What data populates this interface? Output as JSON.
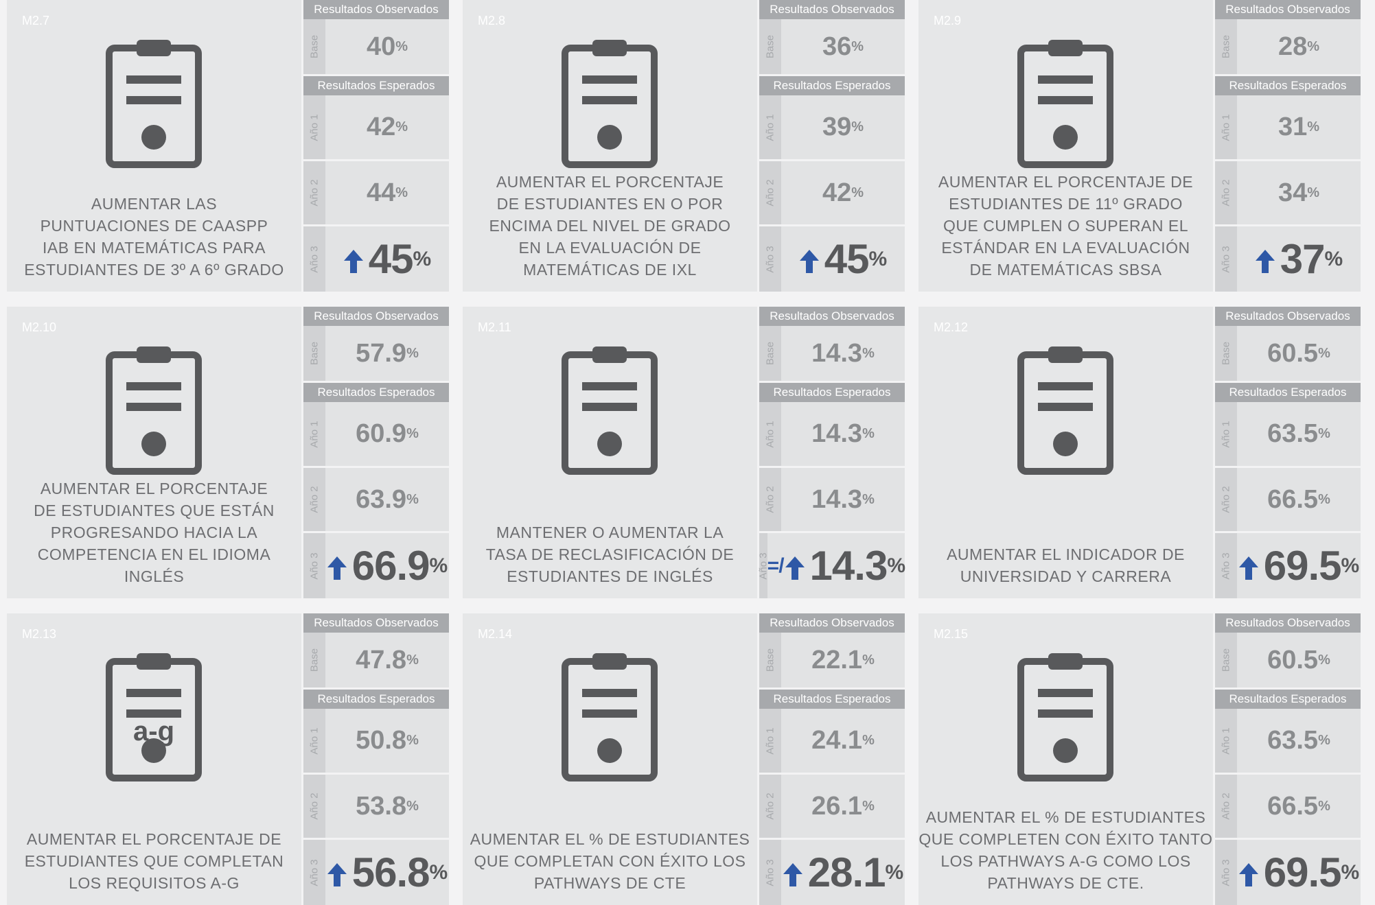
{
  "labels": {
    "observed": "Resultados Observados",
    "expected": "Resultados Esperados",
    "base": "Base",
    "year1": "Año 1",
    "year2": "Año 2",
    "year3": "Año 3",
    "unit": "%"
  },
  "cards": [
    {
      "id": "M2.7",
      "lines": [
        "AUMENTAR LAS",
        "PUNTUACIONES DE CAASPP",
        "IAB EN MATEMÁTICAS PARA",
        "ESTUDIANTES DE 3º A 6º GRADO"
      ],
      "base": "40",
      "year1": "42",
      "year2": "44",
      "year3": "45"
    },
    {
      "id": "M2.8",
      "lines": [
        "AUMENTAR EL PORCENTAJE",
        "DE ESTUDIANTES EN O POR",
        "ENCIMA DEL NIVEL DE GRADO",
        "EN LA EVALUACIÓN DE",
        "MATEMÁTICAS DE IXL"
      ],
      "base": "36",
      "year1": "39",
      "year2": "42",
      "year3": "45"
    },
    {
      "id": "M2.9",
      "lines": [
        "AUMENTAR EL PORCENTAJE DE",
        "ESTUDIANTES DE 11º GRADO",
        "QUE CUMPLEN O SUPERAN EL",
        "ESTÁNDAR EN LA EVALUACIÓN",
        "DE MATEMÁTICAS SBSA"
      ],
      "base": "28",
      "year1": "31",
      "year2": "34",
      "year3": "37"
    },
    {
      "id": "M2.10",
      "lines": [
        "AUMENTAR EL PORCENTAJE",
        "DE ESTUDIANTES QUE ESTÁN",
        "PROGRESANDO HACIA LA",
        "COMPETENCIA EN EL IDIOMA INGLÉS"
      ],
      "base": "57.9",
      "year1": "60.9",
      "year2": "63.9",
      "year3": "66.9"
    },
    {
      "id": "M2.11",
      "lines": [
        "MANTENER O AUMENTAR LA",
        "TASA DE RECLASIFICACIÓN DE",
        "ESTUDIANTES DE INGLÉS"
      ],
      "base": "14.3",
      "year1": "14.3",
      "year2": "14.3",
      "year3": "14.3",
      "year3_prefix": "=/"
    },
    {
      "id": "M2.12",
      "lines": [
        "AUMENTAR EL INDICADOR DE",
        "UNIVERSIDAD Y CARRERA"
      ],
      "base": "60.5",
      "year1": "63.5",
      "year2": "66.5",
      "year3": "69.5"
    },
    {
      "id": "M2.13",
      "lines": [
        "AUMENTAR EL PORCENTAJE DE",
        "ESTUDIANTES QUE COMPLETAN",
        "LOS REQUISITOS A-G"
      ],
      "base": "47.8",
      "year1": "50.8",
      "year2": "53.8",
      "year3": "56.8",
      "icon_text": "a-g"
    },
    {
      "id": "M2.14",
      "lines": [
        "AUMENTAR EL % DE ESTUDIANTES",
        "QUE COMPLETAN CON ÉXITO LOS",
        "PATHWAYS DE CTE"
      ],
      "base": "22.1",
      "year1": "24.1",
      "year2": "26.1",
      "year3": "28.1"
    },
    {
      "id": "M2.15",
      "lines": [
        "AUMENTAR EL % DE ESTUDIANTES",
        "QUE COMPLETEN CON ÉXITO TANTO",
        "LOS PATHWAYS A-G COMO LOS",
        "PATHWAYS DE CTE."
      ],
      "base": "60.5",
      "year1": "63.5",
      "year2": "66.5",
      "year3": "69.5"
    }
  ]
}
